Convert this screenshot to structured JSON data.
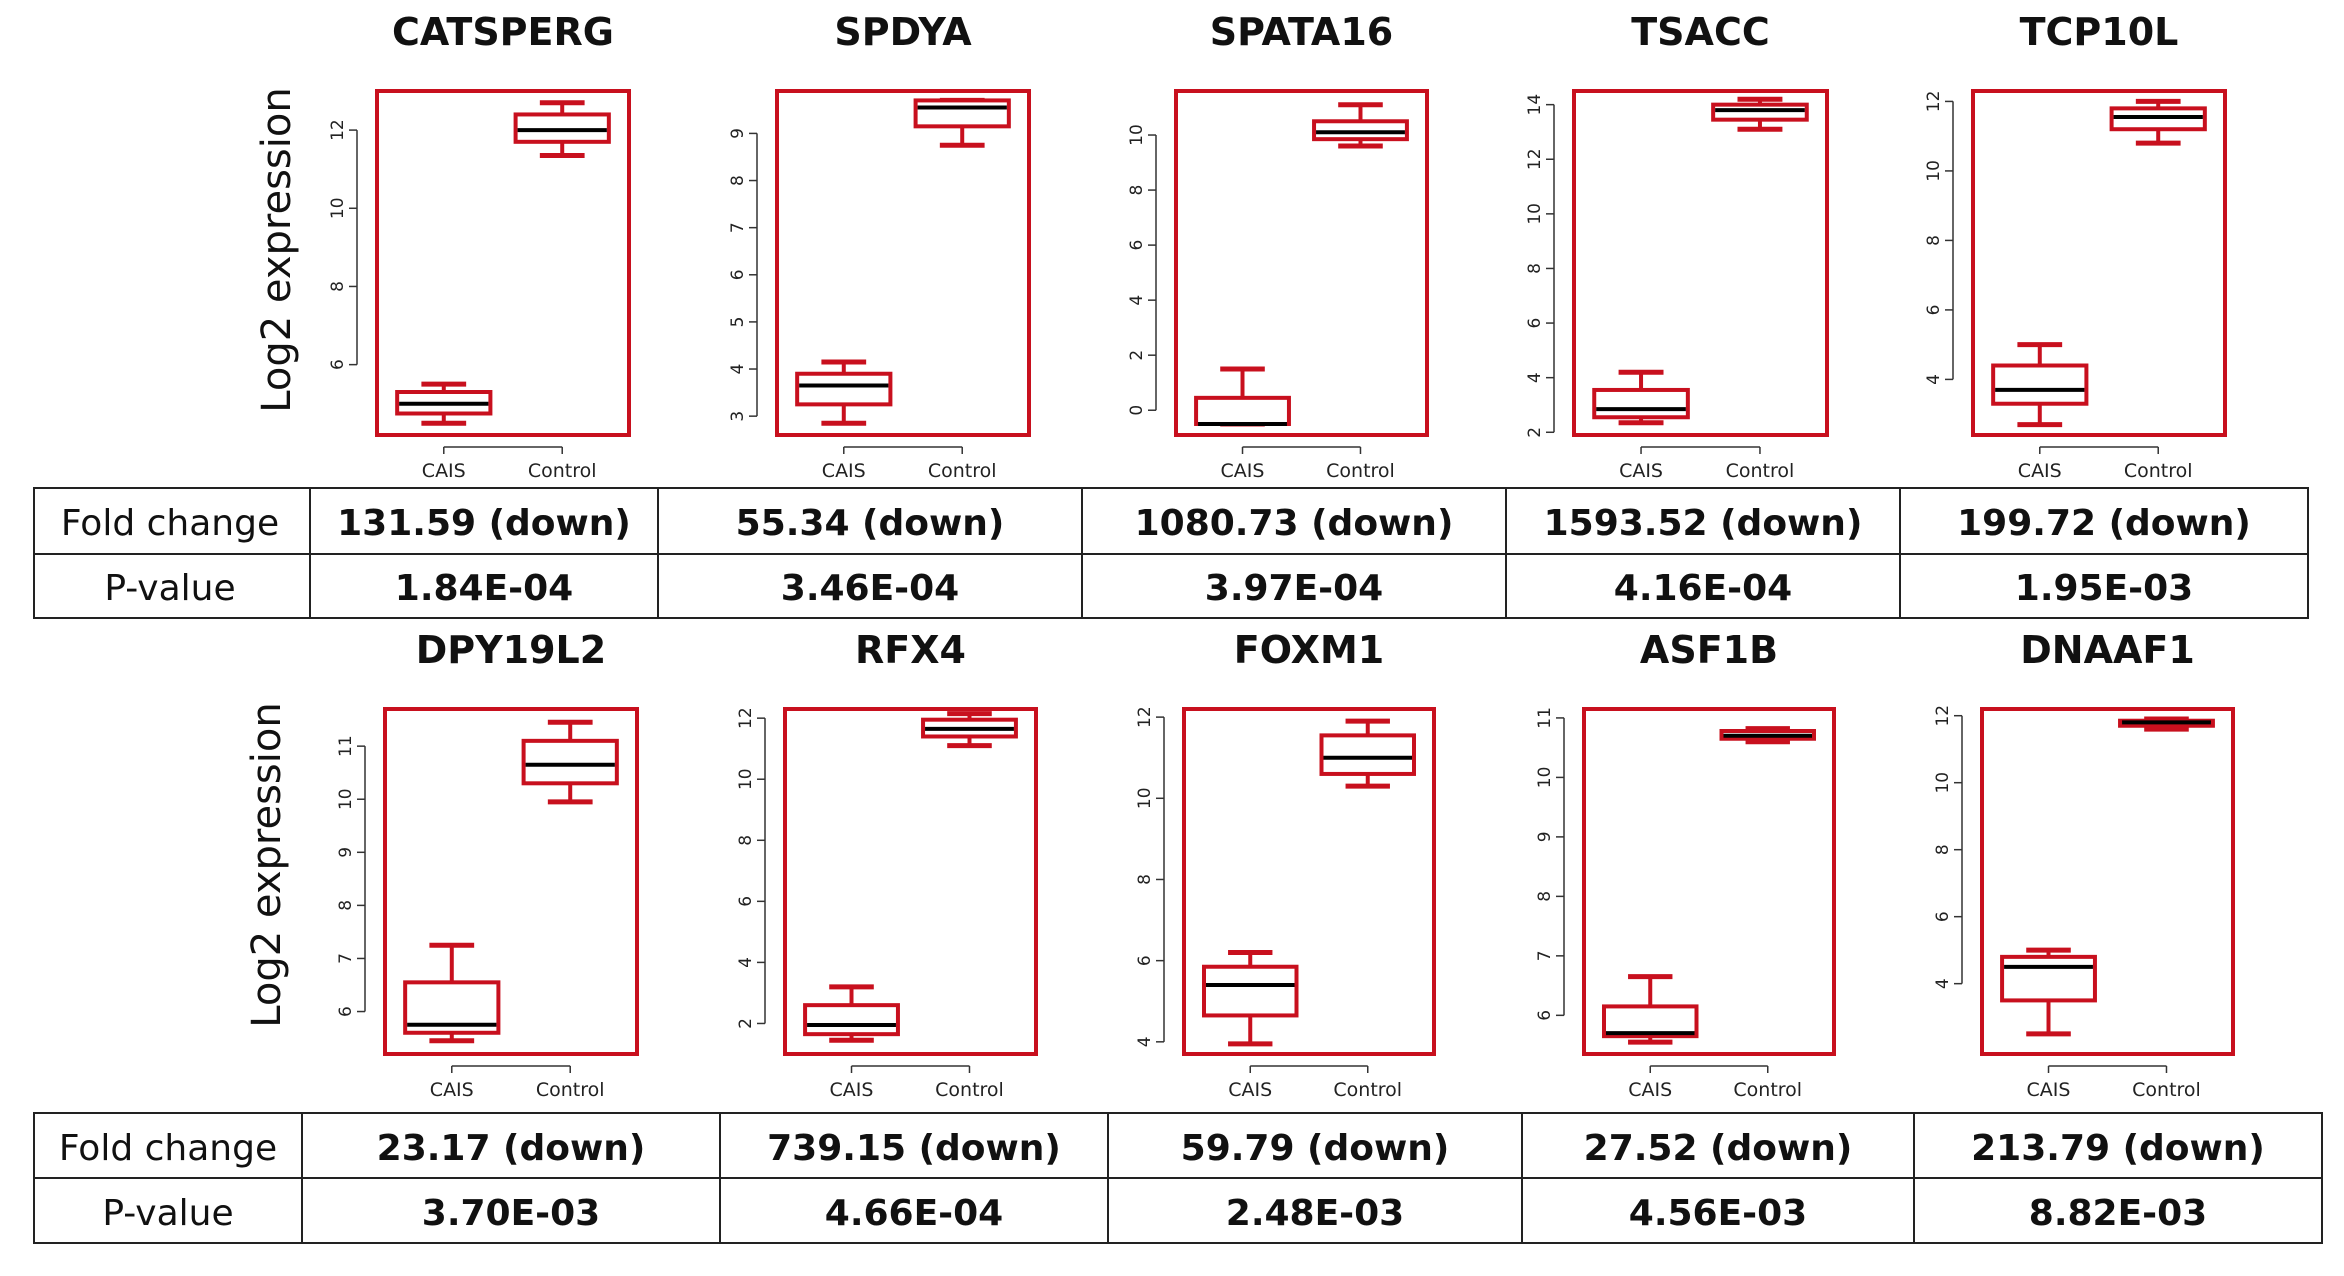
{
  "y_axis_label": "Log2 expression",
  "table_labels": {
    "fold_change": "Fold change",
    "p_value": "P-value"
  },
  "colors": {
    "box": "#c8101e",
    "median": "#000000",
    "table_border": "#222222"
  },
  "chart_data": [
    {
      "type": "box",
      "title": "CATSPERG",
      "categories": [
        "CAIS",
        "Control"
      ],
      "ylim": [
        4.2,
        13.0
      ],
      "yticks": [
        6,
        8,
        10,
        12
      ],
      "boxes": [
        {
          "min": 4.5,
          "q1": 4.75,
          "median": 5.0,
          "q3": 5.3,
          "max": 5.5
        },
        {
          "min": 11.35,
          "q1": 11.7,
          "median": 12.0,
          "q3": 12.4,
          "max": 12.7
        }
      ],
      "fold_change": "131.59 (down)",
      "p_value": "1.84E-04"
    },
    {
      "type": "box",
      "title": "SPDYA",
      "categories": [
        "CAIS",
        "Control"
      ],
      "ylim": [
        2.6,
        9.9
      ],
      "yticks": [
        3,
        4,
        5,
        6,
        7,
        8,
        9
      ],
      "boxes": [
        {
          "min": 2.85,
          "q1": 3.25,
          "median": 3.65,
          "q3": 3.9,
          "max": 4.15
        },
        {
          "min": 8.75,
          "q1": 9.15,
          "median": 9.55,
          "q3": 9.7,
          "max": 9.7
        }
      ],
      "fold_change": "55.34 (down)",
      "p_value": "3.46E-04"
    },
    {
      "type": "box",
      "title": "SPATA16",
      "categories": [
        "CAIS",
        "Control"
      ],
      "ylim": [
        -0.9,
        11.6
      ],
      "yticks": [
        0,
        2,
        4,
        6,
        8,
        10
      ],
      "boxes": [
        {
          "min": -0.5,
          "q1": -0.5,
          "median": -0.5,
          "q3": 0.45,
          "max": 1.5
        },
        {
          "min": 9.6,
          "q1": 9.85,
          "median": 10.1,
          "q3": 10.5,
          "max": 11.1
        }
      ],
      "fold_change": "1080.73 (down)",
      "p_value": "3.97E-04"
    },
    {
      "type": "box",
      "title": "TSACC",
      "categories": [
        "CAIS",
        "Control"
      ],
      "ylim": [
        1.9,
        14.5
      ],
      "yticks": [
        2,
        4,
        6,
        8,
        10,
        12,
        14
      ],
      "boxes": [
        {
          "min": 2.35,
          "q1": 2.55,
          "median": 2.85,
          "q3": 3.55,
          "max": 4.2
        },
        {
          "min": 13.1,
          "q1": 13.45,
          "median": 13.8,
          "q3": 14.0,
          "max": 14.2
        }
      ],
      "fold_change": "1593.52 (down)",
      "p_value": "4.16E-04"
    },
    {
      "type": "box",
      "title": "TCP10L",
      "categories": [
        "CAIS",
        "Control"
      ],
      "ylim": [
        2.4,
        12.3
      ],
      "yticks": [
        4,
        6,
        8,
        10,
        12
      ],
      "boxes": [
        {
          "min": 2.7,
          "q1": 3.3,
          "median": 3.7,
          "q3": 4.4,
          "max": 5.0
        },
        {
          "min": 10.8,
          "q1": 11.2,
          "median": 11.55,
          "q3": 11.8,
          "max": 12.0
        }
      ],
      "fold_change": "199.72 (down)",
      "p_value": "1.95E-03"
    },
    {
      "type": "box",
      "title": "DPY19L2",
      "categories": [
        "CAIS",
        "Control"
      ],
      "ylim": [
        5.2,
        11.7
      ],
      "yticks": [
        6,
        7,
        8,
        9,
        10,
        11
      ],
      "boxes": [
        {
          "min": 5.45,
          "q1": 5.6,
          "median": 5.75,
          "q3": 6.55,
          "max": 7.25
        },
        {
          "min": 9.95,
          "q1": 10.3,
          "median": 10.65,
          "q3": 11.1,
          "max": 11.45
        }
      ],
      "fold_change": "23.17 (down)",
      "p_value": "3.70E-03"
    },
    {
      "type": "box",
      "title": "RFX4",
      "categories": [
        "CAIS",
        "Control"
      ],
      "ylim": [
        1.0,
        12.3
      ],
      "yticks": [
        2,
        4,
        6,
        8,
        10,
        12
      ],
      "boxes": [
        {
          "min": 1.45,
          "q1": 1.65,
          "median": 1.95,
          "q3": 2.6,
          "max": 3.2
        },
        {
          "min": 11.1,
          "q1": 11.4,
          "median": 11.65,
          "q3": 11.95,
          "max": 12.15
        }
      ],
      "fold_change": "739.15 (down)",
      "p_value": "4.66E-04"
    },
    {
      "type": "box",
      "title": "FOXM1",
      "categories": [
        "CAIS",
        "Control"
      ],
      "ylim": [
        3.7,
        12.2
      ],
      "yticks": [
        4,
        6,
        8,
        10,
        12
      ],
      "boxes": [
        {
          "min": 3.95,
          "q1": 4.65,
          "median": 5.4,
          "q3": 5.85,
          "max": 6.2
        },
        {
          "min": 10.3,
          "q1": 10.6,
          "median": 11.0,
          "q3": 11.55,
          "max": 11.9
        }
      ],
      "fold_change": "59.79 (down)",
      "p_value": "2.48E-03"
    },
    {
      "type": "box",
      "title": "ASF1B",
      "categories": [
        "CAIS",
        "Control"
      ],
      "ylim": [
        5.35,
        11.15
      ],
      "yticks": [
        6,
        7,
        8,
        9,
        10,
        11
      ],
      "boxes": [
        {
          "min": 5.55,
          "q1": 5.65,
          "median": 5.7,
          "q3": 6.15,
          "max": 6.65
        },
        {
          "min": 10.6,
          "q1": 10.65,
          "median": 10.7,
          "q3": 10.78,
          "max": 10.82
        }
      ],
      "fold_change": "27.52 (down)",
      "p_value": "4.56E-03"
    },
    {
      "type": "box",
      "title": "DNAAF1",
      "categories": [
        "CAIS",
        "Control"
      ],
      "ylim": [
        1.9,
        12.2
      ],
      "yticks": [
        4,
        6,
        8,
        10,
        12
      ],
      "boxes": [
        {
          "min": 2.5,
          "q1": 3.5,
          "median": 4.5,
          "q3": 4.8,
          "max": 5.0
        },
        {
          "min": 11.6,
          "q1": 11.7,
          "median": 11.8,
          "q3": 11.85,
          "max": 11.9
        }
      ],
      "fold_change": "213.79 (down)",
      "p_value": "8.82E-03"
    }
  ]
}
